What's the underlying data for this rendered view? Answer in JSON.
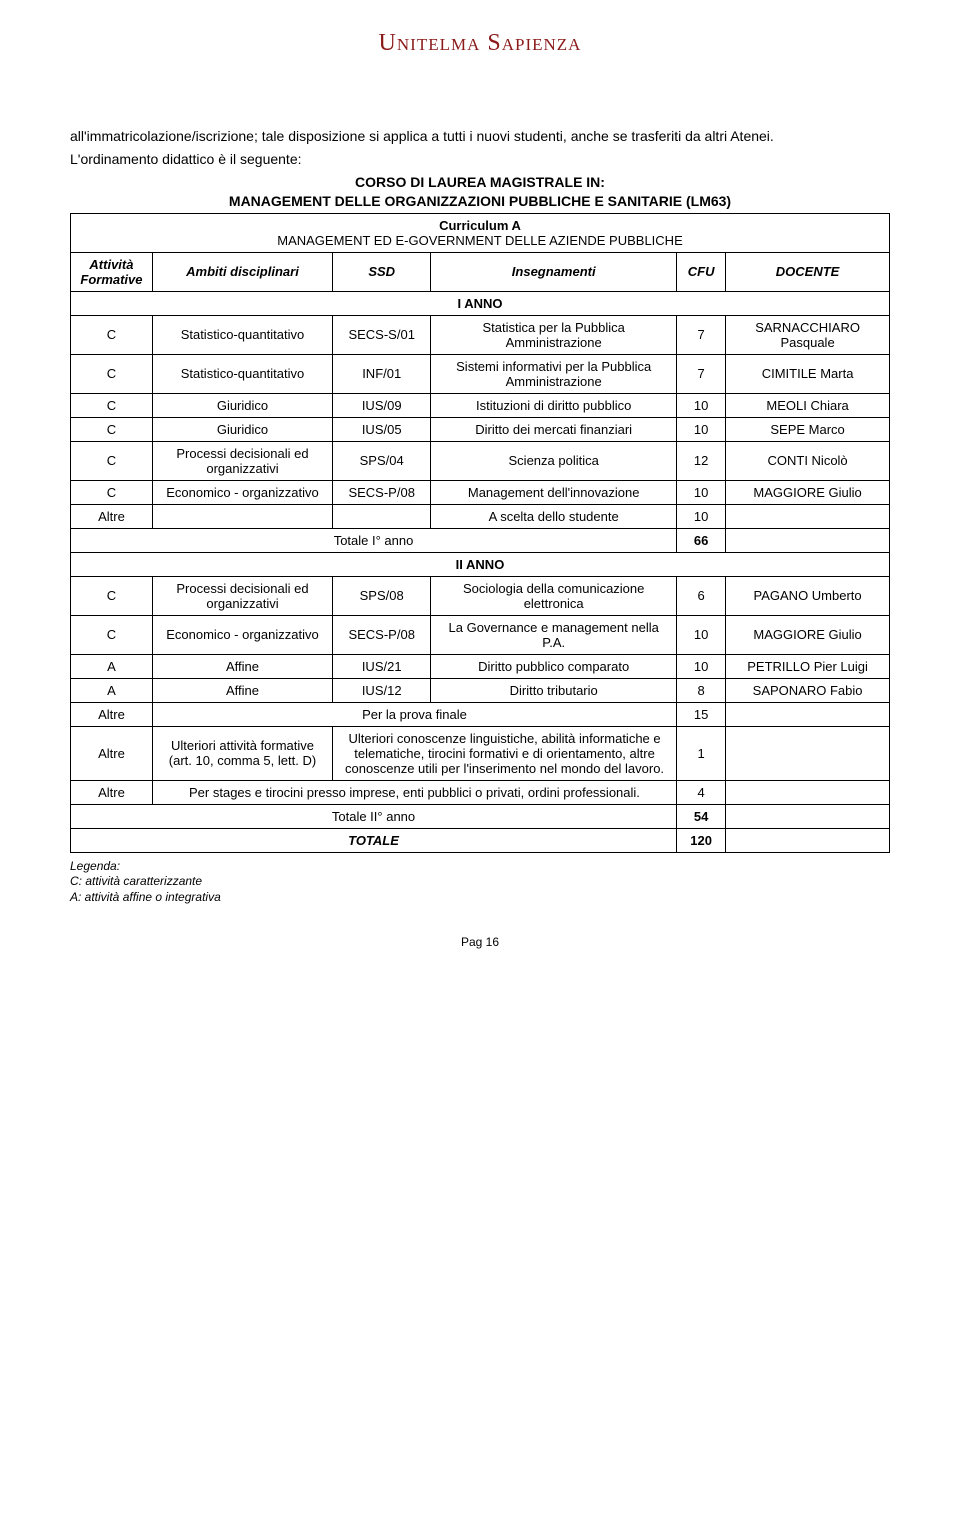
{
  "logo": "Unitelma Sapienza",
  "intro_line1": "all'immatricolazione/iscrizione; tale disposizione si applica a tutti i nuovi studenti, anche se trasferiti da altri Atenei.",
  "intro_line2": "L'ordinamento didattico è il seguente:",
  "course_title": "CORSO DI LAUREA MAGISTRALE IN:",
  "course_name": "MANAGEMENT DELLE ORGANIZZAZIONI PUBBLICHE E SANITARIE (LM63)",
  "curriculum_label": "Curriculum A",
  "curriculum_name": "MANAGEMENT ED E-GOVERNMENT DELLE AZIENDE PUBBLICHE",
  "headers": {
    "attivita": "Attività Formative",
    "ambiti": "Ambiti disciplinari",
    "ssd": "SSD",
    "insegnamenti": "Insegnamenti",
    "cfu": "CFU",
    "docente": "DOCENTE"
  },
  "year1_label": "I ANNO",
  "year1_rows": [
    {
      "att": "C",
      "amb": "Statistico-quantitativo",
      "ssd": "SECS-S/01",
      "ins": "Statistica per la Pubblica Amministrazione",
      "cfu": "7",
      "doc": "SARNACCHIARO Pasquale"
    },
    {
      "att": "C",
      "amb": "Statistico-quantitativo",
      "ssd": "INF/01",
      "ins": "Sistemi informativi per la Pubblica Amministrazione",
      "cfu": "7",
      "doc": "CIMITILE Marta"
    },
    {
      "att": "C",
      "amb": "Giuridico",
      "ssd": "IUS/09",
      "ins": "Istituzioni di diritto pubblico",
      "cfu": "10",
      "doc": "MEOLI Chiara"
    },
    {
      "att": "C",
      "amb": "Giuridico",
      "ssd": "IUS/05",
      "ins": "Diritto dei mercati finanziari",
      "cfu": "10",
      "doc": "SEPE Marco"
    },
    {
      "att": "C",
      "amb": "Processi decisionali ed organizzativi",
      "ssd": "SPS/04",
      "ins": "Scienza politica",
      "cfu": "12",
      "doc": "CONTI Nicolò"
    },
    {
      "att": "C",
      "amb": "Economico - organizzativo",
      "ssd": "SECS-P/08",
      "ins": "Management dell'innovazione",
      "cfu": "10",
      "doc": "MAGGIORE Giulio"
    },
    {
      "att": "Altre",
      "amb": "",
      "ssd": "",
      "ins": "A scelta dello studente",
      "cfu": "10",
      "doc": ""
    }
  ],
  "year1_total_label": "Totale I° anno",
  "year1_total_cfu": "66",
  "year2_label": "II ANNO",
  "year2_rows": [
    {
      "att": "C",
      "amb": "Processi decisionali ed organizzativi",
      "ssd": "SPS/08",
      "ins": "Sociologia della comunicazione elettronica",
      "cfu": "6",
      "doc": "PAGANO Umberto"
    },
    {
      "att": "C",
      "amb": "Economico - organizzativo",
      "ssd": "SECS-P/08",
      "ins": "La Governance e management nella P.A.",
      "cfu": "10",
      "doc": "MAGGIORE Giulio"
    },
    {
      "att": "A",
      "amb": "Affine",
      "ssd": "IUS/21",
      "ins": "Diritto pubblico comparato",
      "cfu": "10",
      "doc": "PETRILLO Pier Luigi"
    },
    {
      "att": "A",
      "amb": "Affine",
      "ssd": "IUS/12",
      "ins": "Diritto tributario",
      "cfu": "8",
      "doc": "SAPONARO Fabio"
    }
  ],
  "year2_extra": [
    {
      "att": "Altre",
      "label": "Per la prova finale",
      "cfu": "15"
    },
    {
      "att": "Altre",
      "amb": "Ulteriori attività formative (art. 10, comma 5, lett. D)",
      "label": "Ulteriori conoscenze linguistiche, abilità informatiche e telematiche, tirocini formativi e di orientamento, altre conoscenze utili per l'inserimento nel mondo del lavoro.",
      "cfu": "1"
    },
    {
      "att": "Altre",
      "label": "Per stages e tirocini presso imprese, enti pubblici o privati, ordini professionali.",
      "cfu": "4"
    }
  ],
  "year2_total_label": "Totale II° anno",
  "year2_total_cfu": "54",
  "grand_total_label": "TOTALE",
  "grand_total_cfu": "120",
  "legend_title": "Legenda:",
  "legend_c": "C: attività caratterizzante",
  "legend_a": "A: attività affine o integrativa",
  "pager": "Pag 16",
  "colors": {
    "logo": "#8b1a1a",
    "text": "#000000",
    "border": "#000000",
    "background": "#ffffff"
  },
  "font_sizes": {
    "logo": 24,
    "body": 14,
    "table": 13,
    "legend": 12
  }
}
